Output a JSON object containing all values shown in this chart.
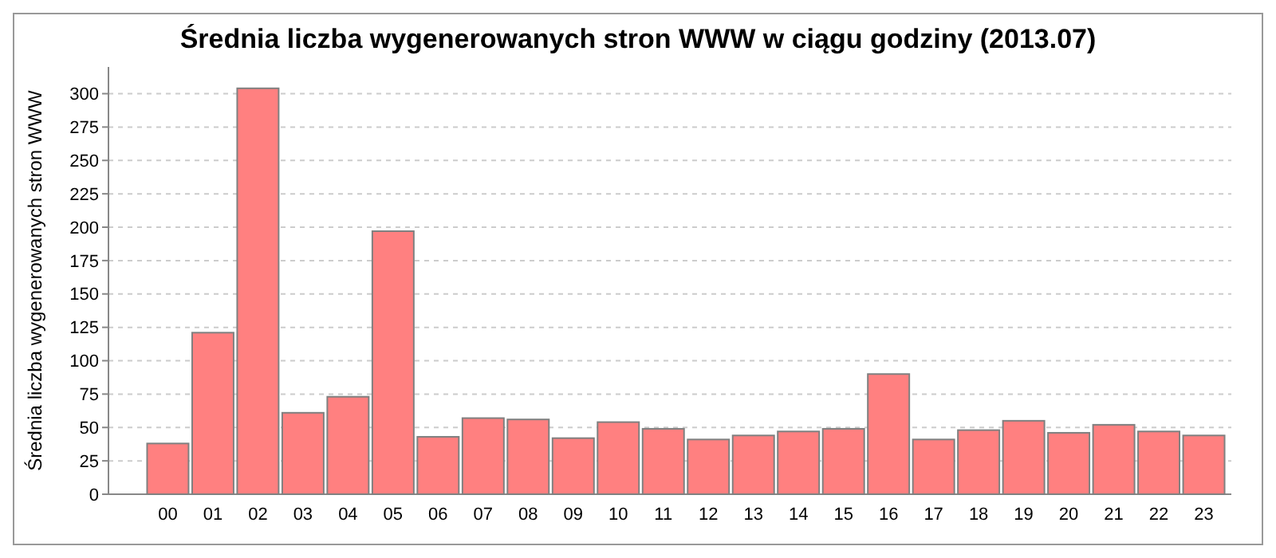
{
  "chart_data": {
    "type": "bar",
    "title": "Średnia liczba wygenerowanych stron WWW w ciągu godziny (2013.07)",
    "ylabel": "Średnia liczba wygenerowanych stron WWW",
    "categories": [
      "00",
      "01",
      "02",
      "03",
      "04",
      "05",
      "06",
      "07",
      "08",
      "09",
      "10",
      "11",
      "12",
      "13",
      "14",
      "15",
      "16",
      "17",
      "18",
      "19",
      "20",
      "21",
      "22",
      "23"
    ],
    "values": [
      38,
      121,
      304,
      61,
      73,
      197,
      43,
      57,
      56,
      42,
      54,
      49,
      41,
      44,
      47,
      49,
      90,
      41,
      48,
      55,
      46,
      52,
      47,
      44
    ],
    "color": "#ff8080",
    "ylim": [
      0,
      320
    ],
    "yticks": [
      0,
      25,
      50,
      75,
      100,
      125,
      150,
      175,
      200,
      225,
      250,
      275,
      300
    ],
    "grid": "y"
  }
}
